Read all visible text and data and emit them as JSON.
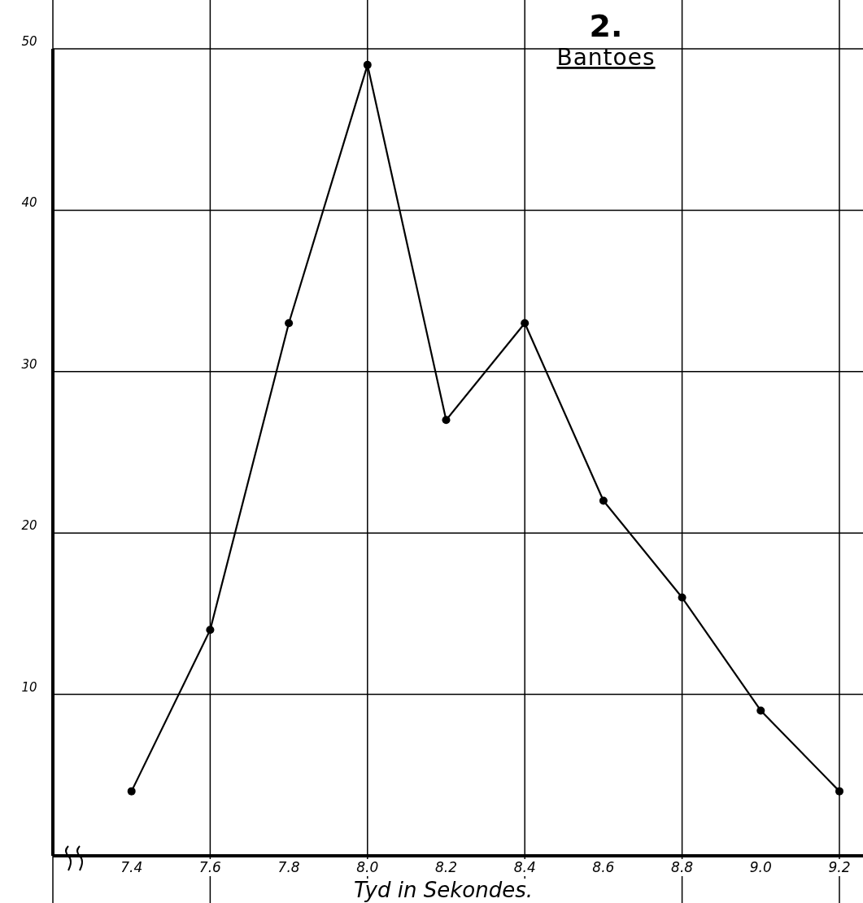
{
  "chart_data": {
    "type": "line",
    "title": "2.",
    "subtitle": "Bantoes",
    "xlabel": "Tyd in Sekondes.",
    "x": [
      7.4,
      7.6,
      7.8,
      8.0,
      8.2,
      8.4,
      8.6,
      8.8,
      9.0,
      9.2
    ],
    "values": [
      4,
      14,
      33,
      49,
      27,
      33,
      22,
      16,
      9,
      4
    ],
    "color": "#000000",
    "marker": "circle",
    "line_style": "solid",
    "grid": true,
    "xlim": [
      7.2,
      9.26
    ],
    "xticks": [
      7.4,
      7.6,
      7.8,
      {
        "value": 8.0,
        "label": "8.0"
      },
      8.2,
      8.4,
      8.6,
      8.8,
      {
        "value": 9.0,
        "label": "9.0"
      },
      9.2
    ],
    "ylim": [
      0,
      50
    ],
    "yticks": [
      10,
      20,
      30,
      40,
      50
    ]
  }
}
